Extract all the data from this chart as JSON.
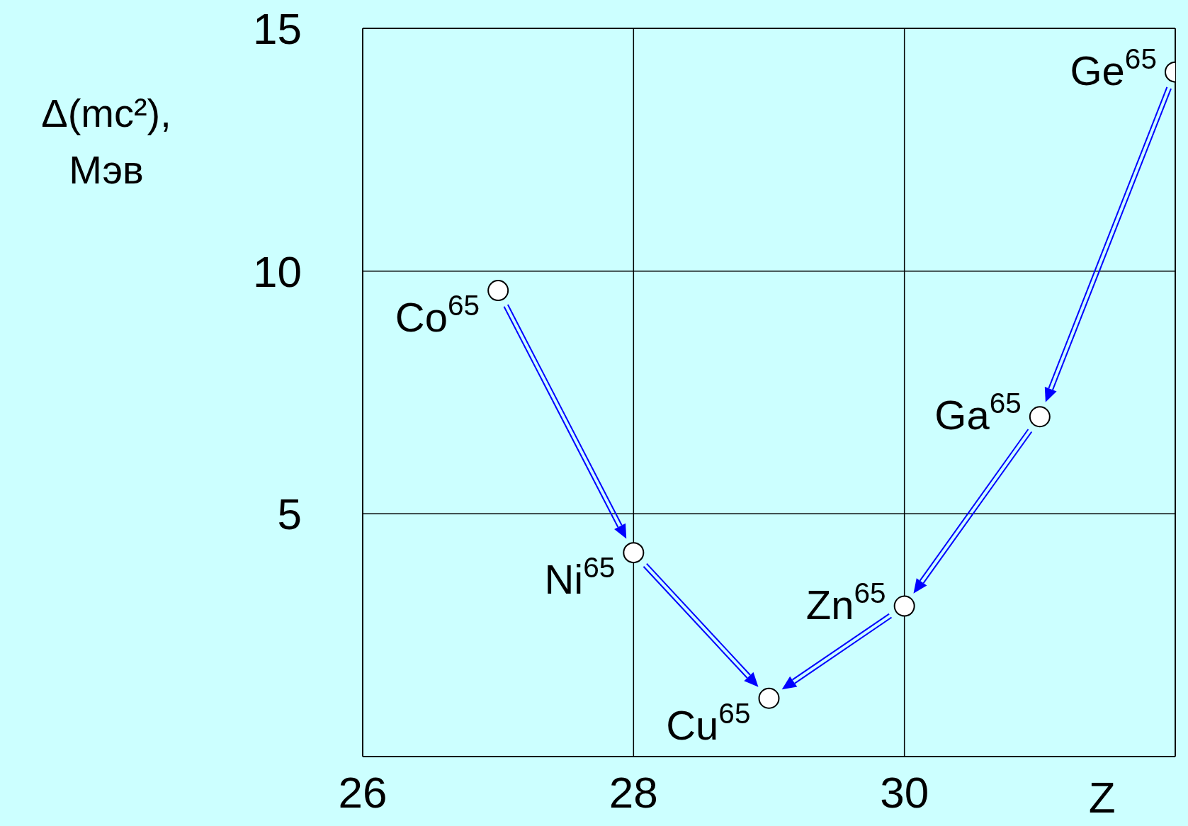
{
  "chart_data": {
    "type": "scatter",
    "xlabel": "Z",
    "ylabel": "Δ(mc²), Мэв",
    "x": [
      27,
      28,
      29,
      30,
      31,
      32
    ],
    "values": [
      9.6,
      4.2,
      1.2,
      3.1,
      7.0,
      14.1
    ],
    "color": "#000000",
    "marker": "circle",
    "grid": true,
    "xlim": [
      26,
      32
    ],
    "xticks": [
      26,
      28,
      30
    ],
    "ylim": [
      0,
      15
    ],
    "yticks": [
      5,
      10,
      15
    ],
    "annotations": [
      {
        "text": "Co$^{65}$",
        "x": 27,
        "y": 9.6
      },
      {
        "text": "Ni$^{65}$",
        "x": 28,
        "y": 4.2
      },
      {
        "text": "Cu$^{65}$",
        "x": 29,
        "y": 1.2
      },
      {
        "text": "Zn$^{65}$",
        "x": 30,
        "y": 3.1
      },
      {
        "text": "Ga$^{65}$",
        "x": 31,
        "y": 7.0
      },
      {
        "text": "Ge$^{65}$",
        "x": 32,
        "y": 14.1
      }
    ]
  }
}
